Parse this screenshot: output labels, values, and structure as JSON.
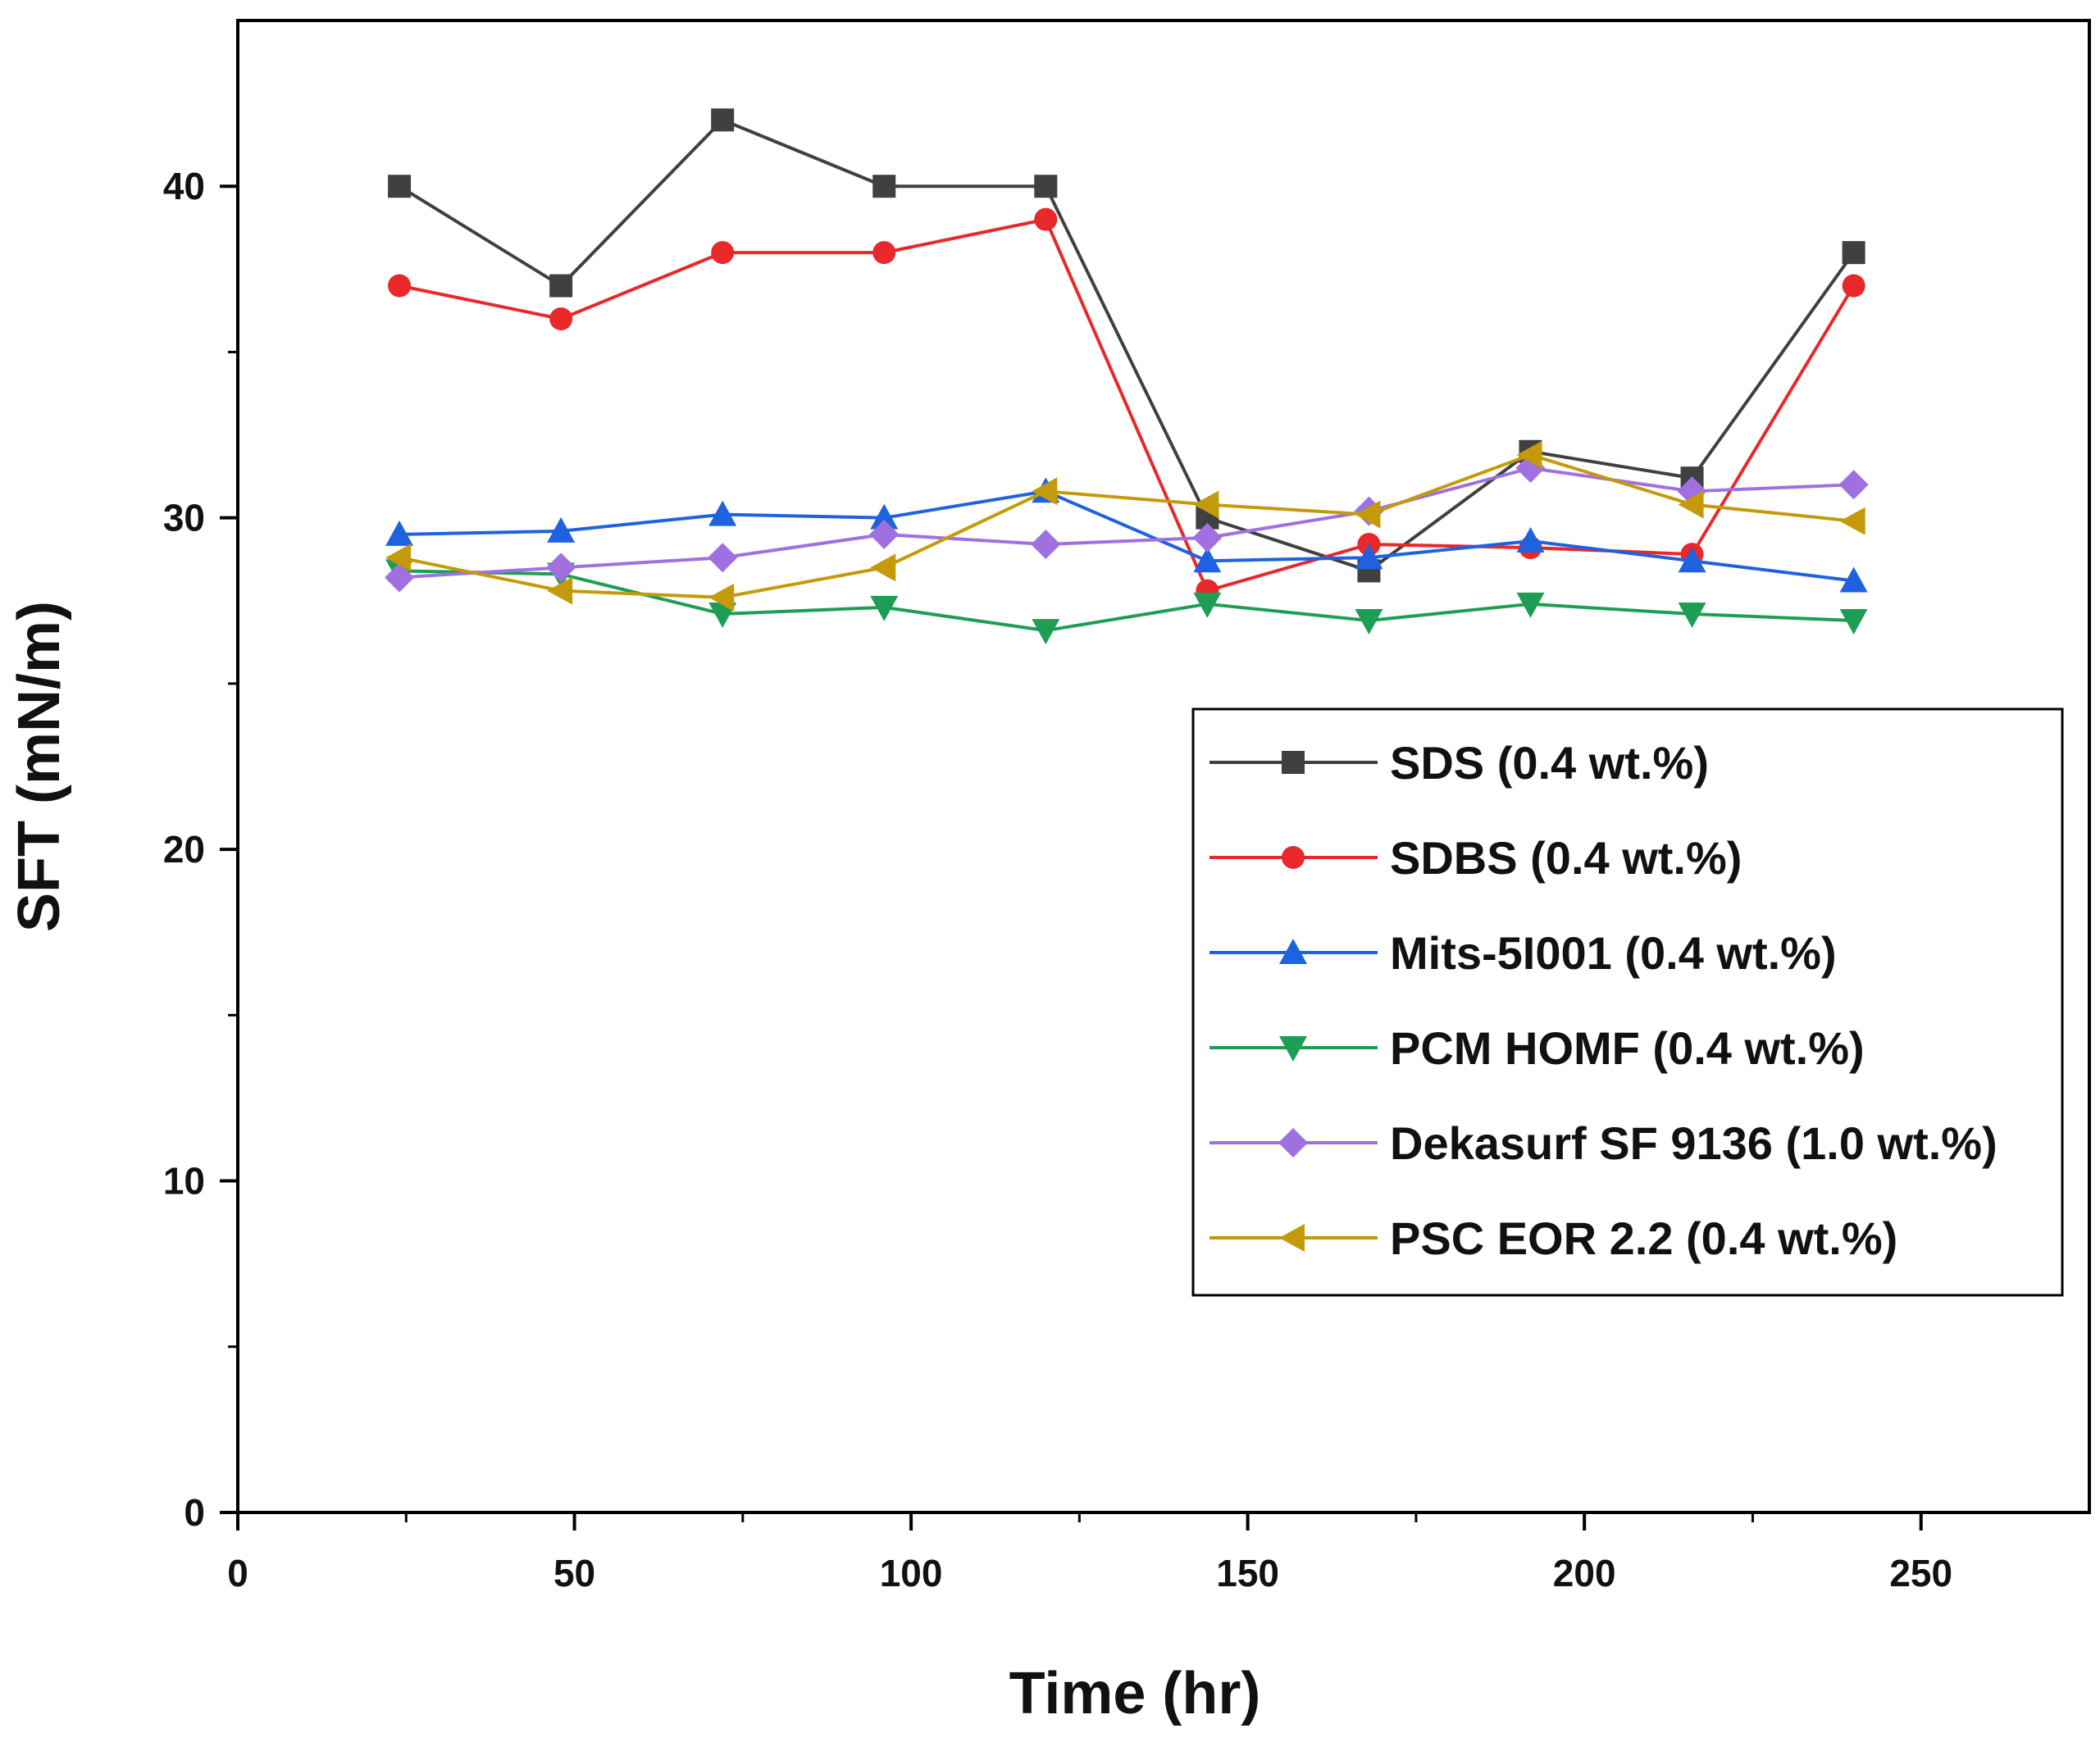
{
  "chart_data": {
    "type": "line",
    "title": "",
    "xlabel": "Time (hr)",
    "ylabel": "SFT (mN/m)",
    "xlim": [
      0,
      275
    ],
    "ylim": [
      0,
      45
    ],
    "xticks": [
      0,
      50,
      100,
      150,
      200,
      250
    ],
    "yticks": [
      0,
      10,
      20,
      30,
      40
    ],
    "legend_position": "right-middle",
    "x": [
      24,
      48,
      72,
      96,
      120,
      144,
      168,
      192,
      216,
      240
    ],
    "series": [
      {
        "name": "SDS (0.4 wt.%)",
        "color": "#404040",
        "marker": "square",
        "values": [
          40,
          37,
          42,
          40,
          40,
          30,
          28.4,
          32,
          31.2,
          38
        ]
      },
      {
        "name": "SDBS (0.4 wt.%)",
        "color": "#e8282b",
        "marker": "circle",
        "values": [
          37,
          36,
          38,
          38,
          39,
          27.8,
          29.2,
          29.1,
          28.9,
          37
        ]
      },
      {
        "name": "Mits-5I001 (0.4 wt.%)",
        "color": "#1f62e0",
        "marker": "triangle-up",
        "values": [
          29.5,
          29.6,
          30.1,
          30.0,
          30.8,
          28.7,
          28.8,
          29.3,
          28.7,
          28.1
        ]
      },
      {
        "name": "PCM HOMF (0.4 wt.%)",
        "color": "#1e9e55",
        "marker": "triangle-down",
        "values": [
          28.4,
          28.3,
          27.1,
          27.3,
          26.6,
          27.4,
          26.9,
          27.4,
          27.1,
          26.9
        ]
      },
      {
        "name": "Dekasurf SF 9136 (1.0 wt.%)",
        "color": "#a070e0",
        "marker": "diamond",
        "values": [
          28.2,
          28.5,
          28.8,
          29.5,
          29.2,
          29.4,
          30.2,
          31.5,
          30.8,
          31.0
        ]
      },
      {
        "name": "PSC EOR 2.2 (0.4 wt.%)",
        "color": "#c49a0a",
        "marker": "triangle-left",
        "values": [
          28.8,
          27.8,
          27.6,
          28.5,
          30.8,
          30.4,
          30.1,
          31.9,
          30.4,
          29.9
        ]
      }
    ]
  }
}
